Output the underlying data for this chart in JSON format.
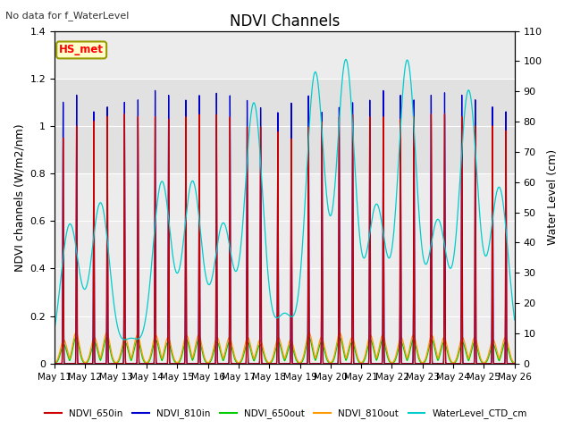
{
  "title": "NDVI Channels",
  "top_left_text": "No data for f_WaterLevel",
  "annotation_text": "HS_met",
  "ylabel_left": "NDVI channels (W/m2/nm)",
  "ylabel_right": "Water Level (cm)",
  "ylim_left": [
    0.0,
    1.4
  ],
  "ylim_right": [
    0,
    110
  ],
  "xtick_labels": [
    "May 11",
    "May 12",
    "May 13",
    "May 14",
    "May 15",
    "May 16",
    "May 17",
    "May 18",
    "May 19",
    "May 20",
    "May 21",
    "May 22",
    "May 23",
    "May 24",
    "May 25",
    "May 26"
  ],
  "yticks_left": [
    0.0,
    0.2,
    0.4,
    0.6,
    0.8,
    1.0,
    1.2,
    1.4
  ],
  "yticks_right": [
    0,
    10,
    20,
    30,
    40,
    50,
    60,
    70,
    80,
    90,
    100,
    110
  ],
  "colors": {
    "NDVI_650in": "#cc0000",
    "NDVI_810in": "#0000cc",
    "NDVI_650out": "#00cc00",
    "NDVI_810out": "#ff9900",
    "WaterLevel_CTD_cm": "#00cccc"
  },
  "background_color": "#ffffff",
  "plot_bg_color": "#ececec",
  "grid_color": "#ffffff",
  "gray_band": [
    0.8,
    1.2
  ],
  "n_days": 15,
  "spikes_per_day": 2,
  "peak_810in": [
    1.1,
    1.13,
    1.06,
    1.08,
    1.1,
    1.11,
    1.15,
    1.13,
    1.11,
    1.13,
    1.14,
    1.13,
    1.11,
    1.08,
    1.06,
    1.1,
    1.13,
    1.06,
    1.08,
    1.1,
    1.11,
    1.15,
    1.13,
    1.11,
    1.13,
    1.14,
    1.13,
    1.11,
    1.08,
    1.06
  ],
  "peak_650in": [
    0.95,
    1.0,
    1.02,
    1.04,
    1.05,
    1.04,
    1.04,
    1.03,
    1.04,
    1.05,
    1.05,
    1.04,
    1.0,
    1.0,
    0.98,
    0.95,
    1.0,
    1.02,
    1.04,
    1.05,
    1.04,
    1.04,
    1.03,
    1.04,
    1.05,
    1.05,
    1.04,
    1.0,
    1.0,
    0.98
  ],
  "water_level_peaks": [
    46,
    53,
    8,
    60,
    60,
    46,
    86,
    16,
    96,
    100,
    52,
    100,
    47,
    90,
    58,
    10,
    88,
    56,
    84,
    62,
    60,
    72,
    62,
    72,
    73,
    62,
    63,
    72,
    72,
    74
  ],
  "out_650_peaks": [
    0.08,
    0.11,
    0.09,
    0.11,
    0.09,
    0.1,
    0.1,
    0.09,
    0.1,
    0.1,
    0.09,
    0.09,
    0.09,
    0.08,
    0.09,
    0.08,
    0.11,
    0.09,
    0.11,
    0.09,
    0.1,
    0.1,
    0.09,
    0.1,
    0.1,
    0.09,
    0.09,
    0.09,
    0.08,
    0.09
  ],
  "out_810_peaks": [
    0.1,
    0.13,
    0.11,
    0.13,
    0.11,
    0.12,
    0.12,
    0.11,
    0.12,
    0.12,
    0.11,
    0.11,
    0.11,
    0.1,
    0.11,
    0.1,
    0.13,
    0.11,
    0.13,
    0.11,
    0.12,
    0.12,
    0.11,
    0.12,
    0.12,
    0.11,
    0.11,
    0.11,
    0.1,
    0.11
  ]
}
